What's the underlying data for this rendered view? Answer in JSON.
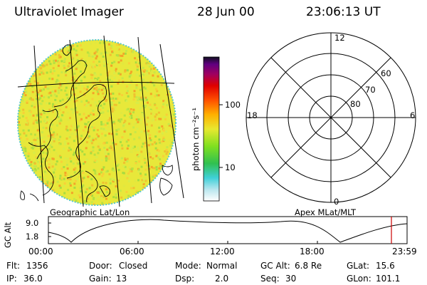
{
  "header": {
    "title": "Ultraviolet Imager",
    "date": "28 Jun 00",
    "time": "23:06:13 UT"
  },
  "colorbar": {
    "label": "photon cm⁻²s⁻¹",
    "ticks": [
      "100",
      "10"
    ]
  },
  "left_panel": {
    "caption": "Geographic Lat/Lon"
  },
  "right_panel": {
    "caption": "Apex MLat/MLT",
    "mlt_labels": [
      "12",
      "18",
      "6",
      "0"
    ],
    "lat_labels": [
      "60",
      "70",
      "80"
    ]
  },
  "timeline": {
    "ylabel": "GC Alt",
    "yticks": [
      "9.0",
      "1.8"
    ],
    "xticks": [
      "00:00",
      "06:00",
      "12:00",
      "18:00",
      "23:59"
    ]
  },
  "status": {
    "row1": [
      {
        "key": "Flt:",
        "val": "1356"
      },
      {
        "key": "Door:",
        "val": "Closed"
      },
      {
        "key": "Mode:",
        "val": "Normal"
      },
      {
        "key": "GC Alt:",
        "val": "6.8 Re"
      },
      {
        "key": "GLat:",
        "val": "15.6"
      }
    ],
    "row2": [
      {
        "key": "IP:",
        "val": "36.0"
      },
      {
        "key": "Gain:",
        "val": "13"
      },
      {
        "key": "Dsp:",
        "val": "2.0"
      },
      {
        "key": "Seq:",
        "val": "30"
      },
      {
        "key": "GLon:",
        "val": "101.1"
      }
    ]
  },
  "colors": {
    "marker": "#cc0000",
    "image_base": "#e8e83a"
  }
}
